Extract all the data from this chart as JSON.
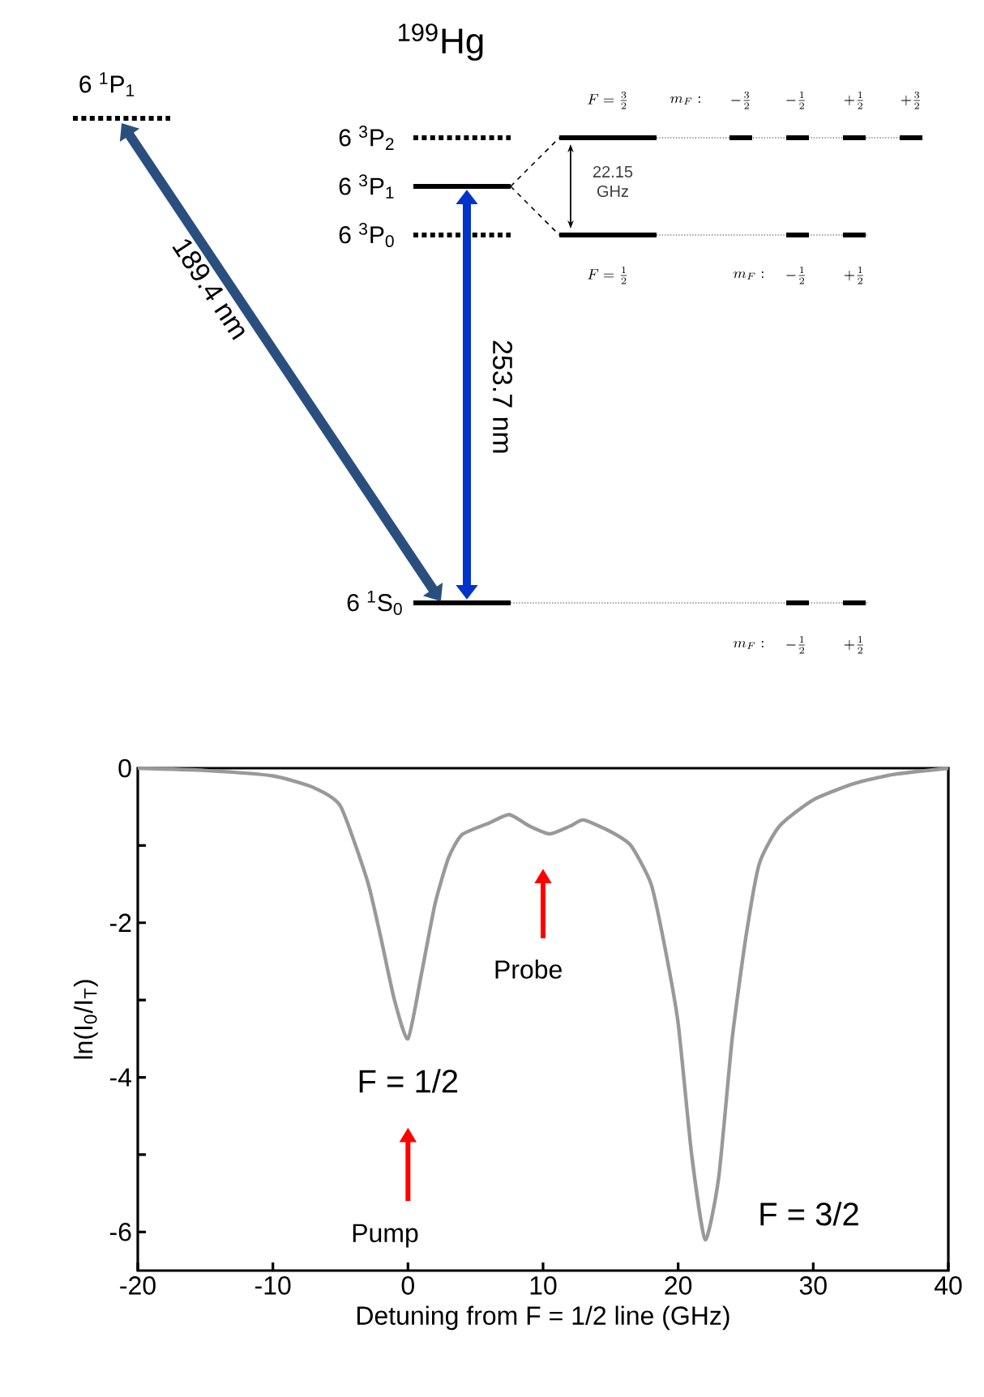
{
  "chart_data": [
    {
      "type": "other",
      "title": "$^{199}$Hg",
      "annotations": [
        "6 $^{1}$P$_{1}$",
        "6 $^{3}$P$_{2}$",
        "6 $^{3}$P$_{1}$",
        "6 $^{3}$P$_{0}$",
        "6 $^{1}$S$_{0}$",
        "189.4 nm",
        "253.7 nm",
        "22.15 GHz",
        "F = \\frac{3}{2}",
        "m_{F}:",
        "-\\frac{3}{2}",
        "-\\frac{1}{2}",
        "+\\frac{1}{2}",
        "+\\frac{3}{2}",
        "F = \\frac{1}{2}",
        "m_{F}:",
        "-\\frac{1}{2}",
        "+\\frac{1}{2}",
        "m_{F}:",
        "-\\frac{1}{2}",
        "+\\frac{1}{2}"
      ]
    },
    {
      "type": "line",
      "xlabel": "Detuning from F = 1/2 line (GHz)",
      "ylabel": "ln(I$_{0}$/I$_{T}$)",
      "color": "#999999",
      "x": [
        -20,
        -15,
        -10,
        -7,
        -5,
        -3,
        -2,
        -1,
        0,
        1,
        2,
        3,
        4,
        6,
        7.5,
        9,
        10.5,
        12,
        13,
        15,
        16.5,
        18,
        19,
        20,
        21,
        22,
        23,
        24,
        25,
        26,
        27.5,
        30,
        33,
        36,
        40
      ],
      "values": [
        0,
        -0.03,
        -0.1,
        -0.25,
        -0.49,
        -1.46,
        -2.2,
        -3.0,
        -3.5,
        -2.66,
        -1.76,
        -1.16,
        -0.86,
        -0.71,
        -0.6,
        -0.75,
        -0.85,
        -0.75,
        -0.67,
        -0.82,
        -1.0,
        -1.5,
        -2.3,
        -3.3,
        -5.0,
        -6.1,
        -5.3,
        -3.5,
        -2.2,
        -1.24,
        -0.75,
        -0.41,
        -0.2,
        -0.08,
        0
      ],
      "xlim": [
        -20,
        40
      ],
      "ylim": [
        -6.5,
        0
      ],
      "xticks": [
        -20,
        -10,
        0,
        10,
        20,
        30,
        40
      ],
      "yticks": [
        0,
        {
          "value": -1,
          "label": null
        },
        -2,
        {
          "value": -3,
          "label": null
        },
        -4,
        {
          "value": -5,
          "label": null
        },
        -6
      ],
      "annotations": [
        {
          "text": "F = 1/2",
          "x": 0,
          "y": -3.5
        },
        {
          "text": "F = 3/2",
          "x": 22,
          "y": -6.1
        },
        "Probe",
        "Pump"
      ]
    }
  ]
}
